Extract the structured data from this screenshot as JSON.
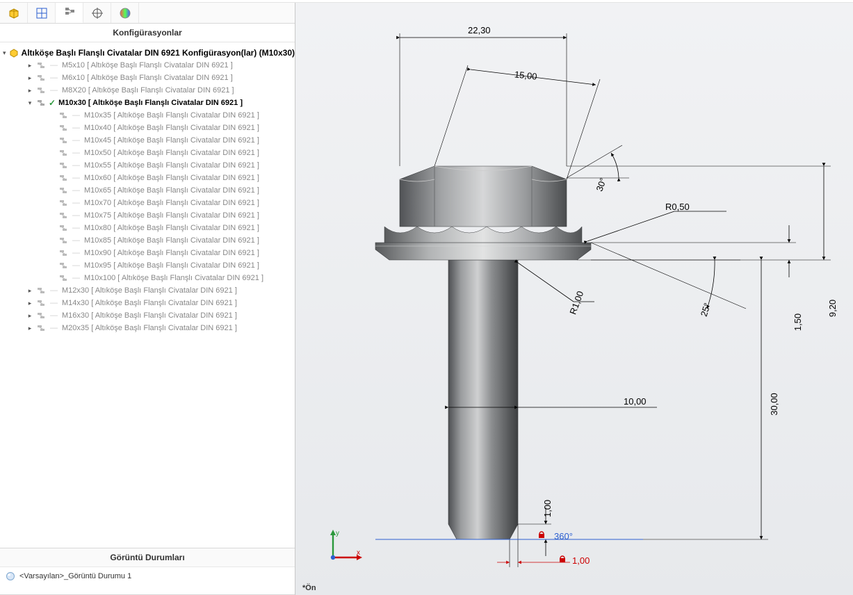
{
  "panel": {
    "title": "Konfigürasyonlar",
    "displayStatesTitle": "Görüntü Durumları",
    "displayState": "<Varsayılan>_Görüntü Durumu 1"
  },
  "tree": {
    "rootLabel": "Altıköşe Başlı Flanşlı Civatalar DIN 6921 Konfigürasyon(lar)  (M10x30)",
    "topChildren": [
      {
        "label": "M5x10 [ Altıköşe Başlı Flanşlı Civatalar DIN 6921 ]"
      },
      {
        "label": "M6x10 [ Altıköşe Başlı Flanşlı Civatalar DIN 6921 ]"
      },
      {
        "label": "M8X20 [ Altıköşe Başlı Flanşlı Civatalar DIN 6921 ]"
      }
    ],
    "activeLabel": "M10x30 [ Altıköşe Başlı Flanşlı Civatalar DIN 6921 ]",
    "subChildren": [
      {
        "label": "M10x35 [ Altıköşe Başlı Flanşlı Civatalar DIN 6921 ]"
      },
      {
        "label": "M10x40 [ Altıköşe Başlı Flanşlı Civatalar DIN 6921 ]"
      },
      {
        "label": "M10x45 [ Altıköşe Başlı Flanşlı Civatalar DIN 6921 ]"
      },
      {
        "label": "M10x50 [ Altıköşe Başlı Flanşlı Civatalar DIN 6921 ]"
      },
      {
        "label": "M10x55 [ Altıköşe Başlı Flanşlı Civatalar DIN 6921 ]"
      },
      {
        "label": "M10x60 [ Altıköşe Başlı Flanşlı Civatalar DIN 6921 ]"
      },
      {
        "label": "M10x65 [ Altıköşe Başlı Flanşlı Civatalar DIN 6921 ]"
      },
      {
        "label": "M10x70 [ Altıköşe Başlı Flanşlı Civatalar DIN 6921 ]"
      },
      {
        "label": "M10x75 [ Altıköşe Başlı Flanşlı Civatalar DIN 6921 ]"
      },
      {
        "label": "M10x80 [ Altıköşe Başlı Flanşlı Civatalar DIN 6921 ]"
      },
      {
        "label": "M10x85 [ Altıköşe Başlı Flanşlı Civatalar DIN 6921 ]"
      },
      {
        "label": "M10x90 [ Altıköşe Başlı Flanşlı Civatalar DIN 6921 ]"
      },
      {
        "label": "M10x95 [ Altıköşe Başlı Flanşlı Civatalar DIN 6921 ]"
      },
      {
        "label": "M10x100 [ Altıköşe Başlı Flanşlı Civatalar DIN 6921 ]"
      }
    ],
    "bottomChildren": [
      {
        "label": "M12x30 [ Altıköşe Başlı Flanşlı Civatalar DIN 6921 ]"
      },
      {
        "label": "M14x30 [ Altıköşe Başlı Flanşlı Civatalar DIN 6921 ]"
      },
      {
        "label": "M16x30 [ Altıköşe Başlı Flanşlı Civatalar DIN 6921 ]"
      },
      {
        "label": "M20x35 [ Altıköşe Başlı Flanşlı Civatalar DIN 6921 ]"
      }
    ]
  },
  "viewport": {
    "orientationLabel": "*Ön",
    "triad": {
      "x": "x",
      "y": "y"
    }
  },
  "drawing": {
    "colors": {
      "steel_light": "#aeb0b2",
      "steel_mid": "#8f9193",
      "steel_dark": "#616366",
      "steel_highlight": "#d8d9da",
      "dim": "#000000",
      "accent_red": "#cc0000",
      "accent_blue": "#2b5fd0",
      "accent_green": "#2a983b"
    },
    "dims": {
      "top_width": "22,30",
      "angled_15": "15,00",
      "angle_30": "30°",
      "radius_050": "R0,50",
      "radius_1": "R1,00",
      "angle_25": "25°",
      "dia_10": "10,00",
      "h_30": "30,00",
      "h_1p5": "1,50",
      "h_9p2": "9,20",
      "bottom_1_v": "1,00",
      "bottom_1_h": "1,00",
      "rev_360": "360°"
    }
  }
}
